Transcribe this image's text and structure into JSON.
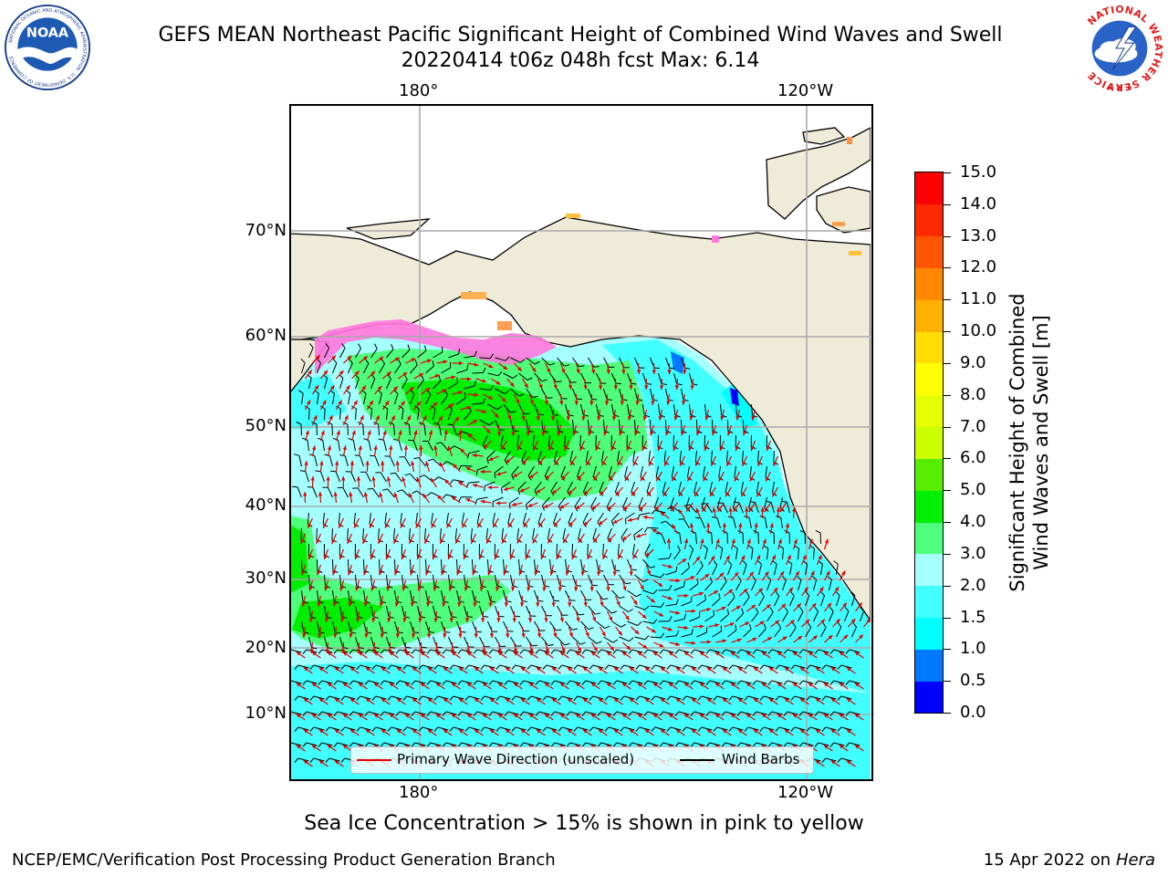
{
  "header": {
    "title_line1": "GEFS MEAN Northeast Pacific Significant Height of Combined Wind Waves and Swell",
    "title_line2": "20220414 t06z 048h fcst   Max: 6.14",
    "left_logo": {
      "name": "noaa-logo",
      "text": "NOAA",
      "ring_text": "NATIONAL OCEANIC AND ATMOSPHERIC ADMINISTRATION · U.S. DEPARTMENT OF COMMERCE"
    },
    "right_logo": {
      "name": "nws-logo",
      "ring_text": "NATIONAL WEATHER SERVICE"
    }
  },
  "map": {
    "lon_labels_top": [
      "180°",
      "120°W"
    ],
    "lon_labels_bottom": [
      "180°",
      "120°W"
    ],
    "lat_labels": [
      "70°N",
      "60°N",
      "50°N",
      "40°N",
      "30°N",
      "20°N",
      "10°N"
    ],
    "colors": {
      "land": "#efebd9",
      "ice_free_sea": "#ffffff",
      "grid": "#aaaaaa",
      "wave_arrow": "#e00000",
      "wind_barb": "#000000"
    }
  },
  "colorbar": {
    "title_line1": "Significant Height of Combined",
    "title_line2": "Wind Waves and Swell [m]",
    "tick_labels": [
      "0.0",
      "0.5",
      "1.0",
      "1.5",
      "2.0",
      "3.0",
      "4.0",
      "5.0",
      "6.0",
      "7.0",
      "8.0",
      "9.0",
      "10.0",
      "11.0",
      "12.0",
      "13.0",
      "14.0",
      "15.0"
    ],
    "colors": [
      "#0000ff",
      "#0078ff",
      "#00ffff",
      "#42ffff",
      "#a5ffff",
      "#4dff7a",
      "#00ee00",
      "#55ee00",
      "#ccff00",
      "#e6ff00",
      "#ffff00",
      "#ffdd00",
      "#ffb000",
      "#ff8800",
      "#ff5500",
      "#ff2a00",
      "#ff0000"
    ]
  },
  "legend": {
    "wave_label": "Primary Wave Direction (unscaled)",
    "wind_label": "Wind Barbs"
  },
  "footer": {
    "footnote": "Sea Ice Concentration > 15% is shown in pink to yellow",
    "credit": "NCEP/EMC/Verification Post Processing Product Generation Branch",
    "date_prefix": "15 Apr 2022 on ",
    "date_machine": "Hera"
  }
}
